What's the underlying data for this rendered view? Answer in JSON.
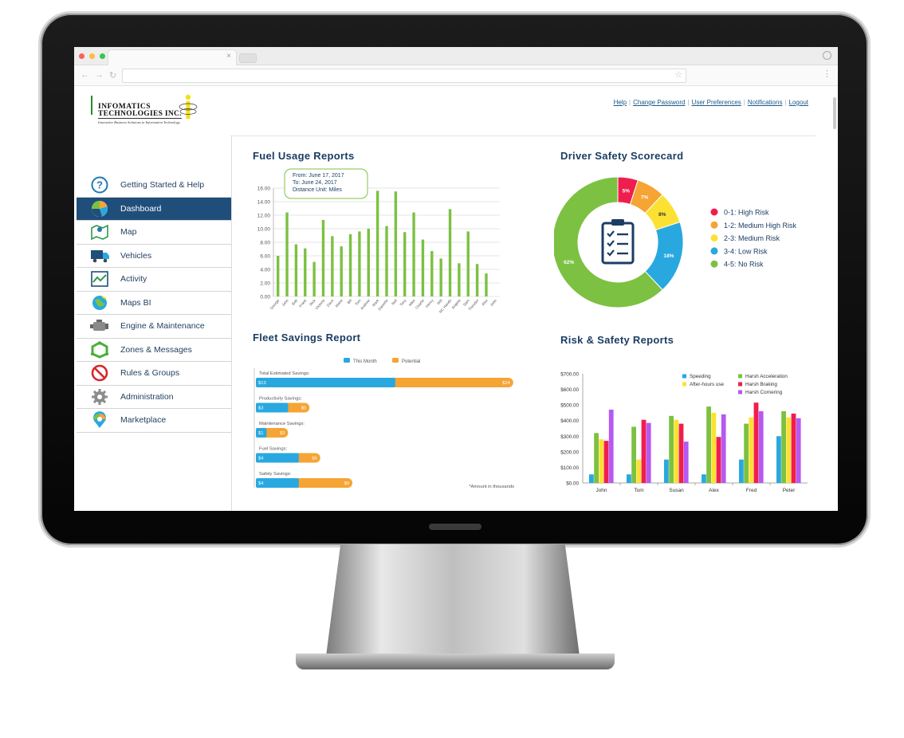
{
  "header": {
    "logo_line1": "INFOMATICS",
    "logo_line2": "TECHNOLOGIES INC.",
    "logo_tagline": "Innovative Business Solutions in Information Technology",
    "links": [
      "Help",
      "Change Password",
      "User Preferences",
      "Notifications",
      "Logout"
    ]
  },
  "sidebar": {
    "items": [
      {
        "label": "Getting Started & Help",
        "icon": "help-circle-icon"
      },
      {
        "label": "Dashboard",
        "icon": "pie-chart-icon",
        "active": true
      },
      {
        "label": "Map",
        "icon": "map-icon"
      },
      {
        "label": "Vehicles",
        "icon": "truck-icon"
      },
      {
        "label": "Activity",
        "icon": "activity-chart-icon"
      },
      {
        "label": "Maps BI",
        "icon": "globe-icon"
      },
      {
        "label": "Engine & Maintenance",
        "icon": "engine-icon"
      },
      {
        "label": "Zones & Messages",
        "icon": "zones-icon"
      },
      {
        "label": "Rules & Groups",
        "icon": "no-entry-icon"
      },
      {
        "label": "Administration",
        "icon": "gear-icon"
      },
      {
        "label": "Marketplace",
        "icon": "marketplace-pin-icon"
      }
    ]
  },
  "panels": {
    "fuel_title": "Fuel Usage Reports",
    "safety_title": "Driver Safety Scorecard",
    "savings_title": "Fleet Savings Report",
    "risk_title": "Risk & Safety Reports"
  },
  "fuel_tooltip": {
    "line1": "From: June 17, 2017",
    "line2": "To: June 24, 2017",
    "line3": "Distance Unit: Miles"
  },
  "colors": {
    "green": "#7cc142",
    "blue": "#29a8e0",
    "orange": "#f6a434",
    "yellow": "#fde132",
    "red": "#ef1e4e",
    "purple": "#b659f2",
    "navy": "#1b3d63"
  },
  "chart_data": [
    {
      "type": "bar",
      "title": "Fuel Usage Reports",
      "ylim": [
        0,
        16
      ],
      "yticks": [
        "0.00",
        "2.00",
        "4.00",
        "6.00",
        "8.00",
        "10.00",
        "12.00",
        "14.00",
        "16.00"
      ],
      "categories": [
        "George",
        "John",
        "Bob",
        "Frank",
        "Rick",
        "Victoria",
        "Dave",
        "Marie",
        "Bill",
        "Tom",
        "Andrew",
        "Mark",
        "Danielle",
        "Neil",
        "Tony",
        "Mike",
        "Charlie",
        "Henry",
        "Will",
        "NC Hands",
        "Angela",
        "Sam",
        "Theodor",
        "Alex",
        "John"
      ],
      "values": [
        6.0,
        12.4,
        7.7,
        7.1,
        5.1,
        11.3,
        8.9,
        7.4,
        9.2,
        9.6,
        10.0,
        15.6,
        10.4,
        15.5,
        9.5,
        12.4,
        8.4,
        6.7,
        5.6,
        12.9,
        4.9,
        9.6,
        4.8,
        3.4,
        0
      ]
    },
    {
      "type": "pie",
      "title": "Driver Safety Scorecard",
      "slices": [
        {
          "label": "0-1: High Risk",
          "value": 5,
          "display": "5%"
        },
        {
          "label": "1-2: Medium High Risk",
          "value": 7,
          "display": "7%"
        },
        {
          "label": "2-3: Medium Risk",
          "value": 8,
          "display": "8%"
        },
        {
          "label": "3-4: Low Risk",
          "value": 18,
          "display": "18%"
        },
        {
          "label": "4-5: No Risk",
          "value": 62,
          "display": "62%"
        }
      ]
    },
    {
      "type": "bar",
      "title": "Fleet Savings Report",
      "legend": [
        "This Month",
        "Potential"
      ],
      "note": "*Amount in thousands",
      "rows": [
        {
          "label": "Total Estimated Savings:",
          "this_month": 13,
          "potential": 24,
          "this_month_label": "$13",
          "potential_label": "$24"
        },
        {
          "label": "Productivity Savings:",
          "this_month": 3,
          "potential": 5,
          "this_month_label": "$3",
          "potential_label": "$5"
        },
        {
          "label": "Maintenance Savings:",
          "this_month": 1,
          "potential": 3,
          "this_month_label": "$1",
          "potential_label": "$3"
        },
        {
          "label": "Fuel Savings:",
          "this_month": 4,
          "potential": 6,
          "this_month_label": "$4",
          "potential_label": "$6"
        },
        {
          "label": "Safety Savings:",
          "this_month": 4,
          "potential": 9,
          "this_month_label": "$4",
          "potential_label": "$9"
        }
      ]
    },
    {
      "type": "bar",
      "title": "Risk & Safety Reports",
      "ylim": [
        0,
        700
      ],
      "yticks": [
        "$0.00",
        "$100.00",
        "$200.00",
        "$300.00",
        "$400.00",
        "$500.00",
        "$600.00",
        "$700.00"
      ],
      "categories": [
        "John",
        "Tom",
        "Susan",
        "Alex",
        "Fred",
        "Peter"
      ],
      "series": [
        {
          "name": "Speeding",
          "color": "#29a8e0",
          "values": [
            55,
            55,
            150,
            55,
            150,
            300
          ]
        },
        {
          "name": "Harsh Acceleration",
          "color": "#7cc142",
          "values": [
            320,
            360,
            430,
            490,
            380,
            460
          ]
        },
        {
          "name": "After-hours use",
          "color": "#fde132",
          "values": [
            280,
            150,
            405,
            450,
            420,
            420
          ]
        },
        {
          "name": "Harsh Braking",
          "color": "#ef1e4e",
          "values": [
            270,
            405,
            380,
            295,
            515,
            445
          ]
        },
        {
          "name": "Harsh Cornering",
          "color": "#b659f2",
          "values": [
            470,
            385,
            265,
            440,
            460,
            415
          ]
        }
      ]
    }
  ]
}
